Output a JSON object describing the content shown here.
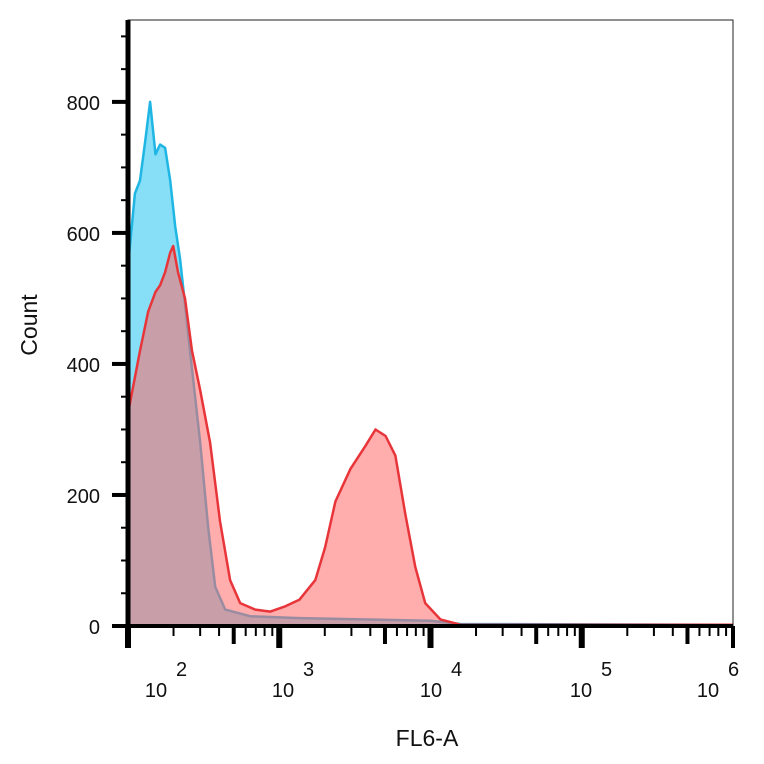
{
  "chart_data": {
    "type": "area",
    "title": "",
    "xlabel": "FL6-A",
    "ylabel": "Count",
    "xscale": "log",
    "xlim": [
      100,
      1000000
    ],
    "ylim": [
      0,
      925
    ],
    "grid": false,
    "legend": "none",
    "y_ticks": [
      0,
      200,
      400,
      600,
      800
    ],
    "y_tick_labels": [
      "0",
      "200",
      "400",
      "600",
      "800"
    ],
    "x_ticks": [
      100,
      1000,
      10000,
      100000,
      1000000
    ],
    "x_tick_labels": [
      {
        "base": "10",
        "exp": "2"
      },
      {
        "base": "10",
        "exp": "3"
      },
      {
        "base": "10",
        "exp": "4"
      },
      {
        "base": "10",
        "exp": "5"
      },
      {
        "base": "10",
        "exp": "6"
      }
    ],
    "series": [
      {
        "color": "#1fb6e3",
        "fill": "#86def7",
        "x": [
          101,
          111,
          120,
          130,
          140,
          152,
          163,
          176,
          190,
          205,
          221,
          257,
          300,
          339,
          377,
          439,
          643,
          1357,
          10000,
          15800,
          1000000
        ],
        "y": [
          560,
          660,
          680,
          740,
          800,
          720,
          735,
          730,
          680,
          610,
          560,
          420,
          280,
          150,
          60,
          25,
          15,
          12,
          8,
          3,
          2
        ]
      },
      {
        "color": "#e8353a",
        "fill": "#ff6a6a",
        "x": [
          101,
          120,
          136,
          152,
          163,
          176,
          190,
          199,
          214,
          238,
          265,
          300,
          349,
          406,
          473,
          552,
          694,
          872,
          1097,
          1357,
          1730,
          2010,
          2350,
          2960,
          3720,
          4330,
          5050,
          5860,
          6820,
          7930,
          9230,
          11630,
          15800,
          1000000
        ],
        "y": [
          330,
          420,
          480,
          510,
          520,
          540,
          570,
          580,
          540,
          500,
          420,
          360,
          280,
          160,
          70,
          35,
          25,
          22,
          30,
          40,
          70,
          120,
          190,
          240,
          275,
          300,
          290,
          260,
          170,
          90,
          35,
          10,
          2,
          2
        ]
      }
    ]
  }
}
